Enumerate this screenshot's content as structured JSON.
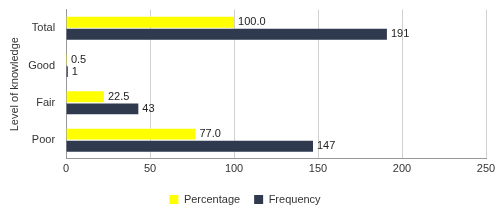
{
  "chart_data": {
    "type": "bar",
    "orientation": "horizontal",
    "ylabel": "Level of knowledge",
    "categories": [
      "Total",
      "Good",
      "Fair",
      "Poor"
    ],
    "series": [
      {
        "name": "Percentage",
        "color": "#ffff00",
        "values": [
          100.0,
          0.5,
          22.5,
          77.0
        ],
        "value_labels": [
          "100.0",
          "0.5",
          "22.5",
          "77.0"
        ]
      },
      {
        "name": "Frequency",
        "color": "#2f3a4f",
        "values": [
          191,
          1,
          43,
          147
        ]
      }
    ],
    "xlim": [
      0,
      250
    ],
    "xticks": [
      0,
      50,
      100,
      150,
      200,
      250
    ],
    "grid": true,
    "legend": "bottom",
    "data_labels": true
  }
}
